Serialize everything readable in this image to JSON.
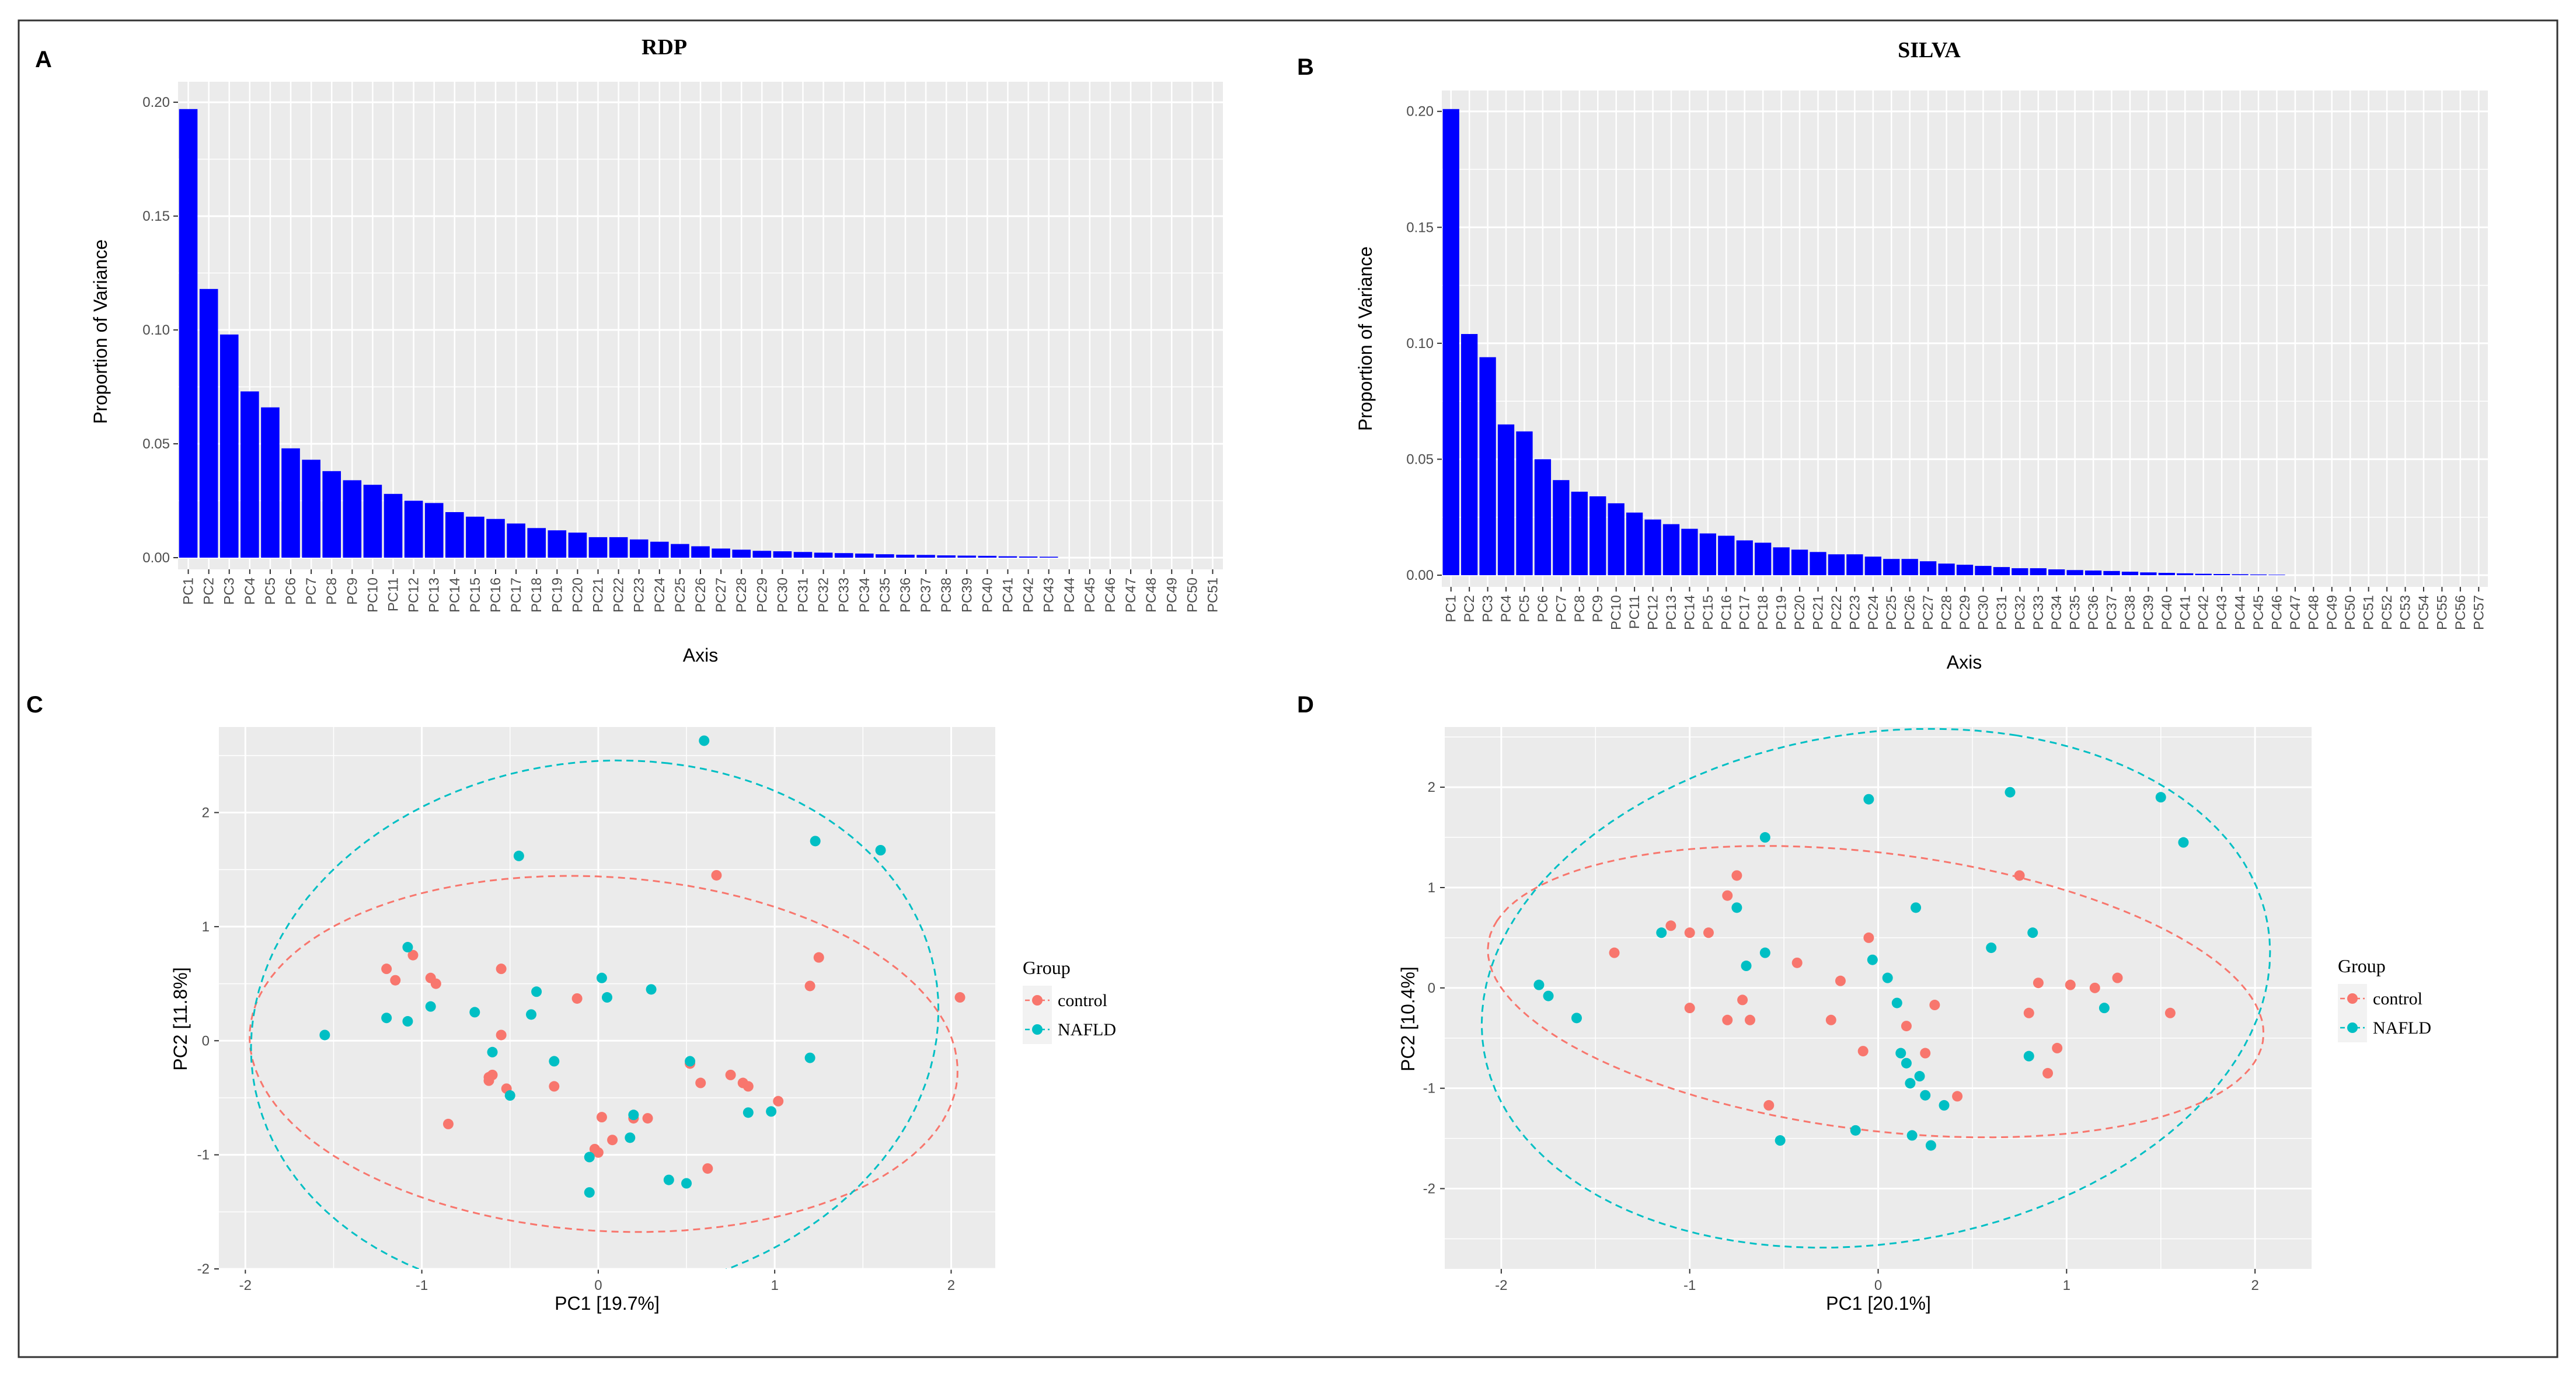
{
  "panels": {
    "A": {
      "letter": "A",
      "title": "RDP"
    },
    "B": {
      "letter": "B",
      "title": "SILVA"
    },
    "C": {
      "letter": "C"
    },
    "D": {
      "letter": "D"
    }
  },
  "colors": {
    "bar": "#0000ff",
    "panel_bg": "#ebebeb",
    "grid": "#ffffff",
    "control": "#f8766d",
    "nafld": "#00bfc4",
    "frame": "#333333"
  },
  "chart_data": [
    {
      "id": "A",
      "type": "bar",
      "title": "RDP",
      "xlabel": "Axis",
      "ylabel": "Proportion of Variance",
      "ylim": [
        0,
        0.2
      ],
      "yticks": [
        0.0,
        0.05,
        0.1,
        0.15,
        0.2
      ],
      "ytick_labels": [
        "0.00",
        "0.05",
        "0.10",
        "0.15",
        "0.20"
      ],
      "grid": true,
      "categories": [
        "PC1",
        "PC2",
        "PC3",
        "PC4",
        "PC5",
        "PC6",
        "PC7",
        "PC8",
        "PC9",
        "PC10",
        "PC11",
        "PC12",
        "PC13",
        "PC14",
        "PC15",
        "PC16",
        "PC17",
        "PC18",
        "PC19",
        "PC20",
        "PC21",
        "PC22",
        "PC23",
        "PC24",
        "PC25",
        "PC26",
        "PC27",
        "PC28",
        "PC29",
        "PC30",
        "PC31",
        "PC32",
        "PC33",
        "PC34",
        "PC35",
        "PC36",
        "PC37",
        "PC38",
        "PC39",
        "PC40",
        "PC41",
        "PC42",
        "PC43",
        "PC44",
        "PC45",
        "PC46",
        "PC47",
        "PC48",
        "PC49",
        "PC50",
        "PC51"
      ],
      "values": [
        0.197,
        0.118,
        0.098,
        0.073,
        0.066,
        0.048,
        0.043,
        0.038,
        0.034,
        0.032,
        0.028,
        0.025,
        0.024,
        0.02,
        0.018,
        0.017,
        0.015,
        0.013,
        0.012,
        0.011,
        0.009,
        0.009,
        0.008,
        0.007,
        0.006,
        0.005,
        0.004,
        0.0035,
        0.003,
        0.0028,
        0.0025,
        0.0022,
        0.002,
        0.0018,
        0.0015,
        0.0013,
        0.0012,
        0.001,
        0.0009,
        0.0008,
        0.0006,
        0.0005,
        0.0004,
        0,
        0,
        0,
        0,
        0,
        0,
        0,
        0
      ]
    },
    {
      "id": "B",
      "type": "bar",
      "title": "SILVA",
      "xlabel": "Axis",
      "ylabel": "Proportion of Variance",
      "ylim": [
        0,
        0.2
      ],
      "yticks": [
        0.0,
        0.05,
        0.1,
        0.15,
        0.2
      ],
      "ytick_labels": [
        "0.00",
        "0.05",
        "0.10",
        "0.15",
        "0.20"
      ],
      "grid": true,
      "categories": [
        "PC1",
        "PC2",
        "PC3",
        "PC4",
        "PC5",
        "PC6",
        "PC7",
        "PC8",
        "PC9",
        "PC10",
        "PC11",
        "PC12",
        "PC13",
        "PC14",
        "PC15",
        "PC16",
        "PC17",
        "PC18",
        "PC19",
        "PC20",
        "PC21",
        "PC22",
        "PC23",
        "PC24",
        "PC25",
        "PC26",
        "PC27",
        "PC28",
        "PC29",
        "PC30",
        "PC31",
        "PC32",
        "PC33",
        "PC34",
        "PC35",
        "PC36",
        "PC37",
        "PC38",
        "PC39",
        "PC40",
        "PC41",
        "PC42",
        "PC43",
        "PC44",
        "PC45",
        "PC46",
        "PC47",
        "PC48",
        "PC49",
        "PC50",
        "PC51",
        "PC52",
        "PC53",
        "PC54",
        "PC55",
        "PC56",
        "PC57"
      ],
      "values": [
        0.201,
        0.104,
        0.094,
        0.065,
        0.062,
        0.05,
        0.041,
        0.036,
        0.034,
        0.031,
        0.027,
        0.024,
        0.022,
        0.02,
        0.018,
        0.017,
        0.015,
        0.014,
        0.012,
        0.011,
        0.01,
        0.009,
        0.009,
        0.008,
        0.007,
        0.007,
        0.006,
        0.005,
        0.0045,
        0.004,
        0.0035,
        0.003,
        0.003,
        0.0025,
        0.0022,
        0.002,
        0.0018,
        0.0015,
        0.0012,
        0.001,
        0.0008,
        0.0006,
        0.0005,
        0.0004,
        0.0003,
        0.0002,
        0,
        0,
        0,
        0,
        0,
        0,
        0,
        0,
        0,
        0,
        0
      ]
    },
    {
      "id": "C",
      "type": "scatter",
      "xlabel": "PC1   [19.7%]",
      "ylabel": "PC2   [11.8%]",
      "xlim": [
        -2.15,
        2.25
      ],
      "ylim": [
        -2.0,
        2.75
      ],
      "xticks": [
        -2,
        -1,
        0,
        1,
        2
      ],
      "yticks": [
        -2,
        -1,
        0,
        1,
        2
      ],
      "grid": true,
      "legend": {
        "title": "Group",
        "position": "right",
        "items": [
          "control",
          "NAFLD"
        ]
      },
      "series": [
        {
          "name": "control",
          "color": "#f8766d",
          "points": [
            [
              -1.2,
              0.63
            ],
            [
              -1.15,
              0.53
            ],
            [
              -1.05,
              0.75
            ],
            [
              -0.95,
              0.55
            ],
            [
              -0.92,
              0.5
            ],
            [
              -0.55,
              0.63
            ],
            [
              -0.85,
              -0.73
            ],
            [
              -0.62,
              -0.35
            ],
            [
              -0.6,
              -0.3
            ],
            [
              -0.62,
              -0.32
            ],
            [
              -0.52,
              -0.42
            ],
            [
              -0.55,
              0.05
            ],
            [
              -0.25,
              -0.4
            ],
            [
              -0.12,
              0.37
            ],
            [
              -0.02,
              -0.95
            ],
            [
              0.0,
              -0.98
            ],
            [
              0.02,
              -0.67
            ],
            [
              0.08,
              -0.87
            ],
            [
              0.2,
              -0.68
            ],
            [
              0.28,
              -0.68
            ],
            [
              0.52,
              -0.2
            ],
            [
              0.58,
              -0.37
            ],
            [
              0.62,
              -1.12
            ],
            [
              0.67,
              1.45
            ],
            [
              0.75,
              -0.3
            ],
            [
              0.82,
              -0.37
            ],
            [
              0.85,
              -0.4
            ],
            [
              1.02,
              -0.53
            ],
            [
              1.2,
              0.48
            ],
            [
              1.25,
              0.73
            ],
            [
              2.05,
              0.38
            ]
          ]
        },
        {
          "name": "NAFLD",
          "color": "#00bfc4",
          "points": [
            [
              -1.55,
              0.05
            ],
            [
              -1.2,
              0.2
            ],
            [
              -1.08,
              0.82
            ],
            [
              -1.08,
              0.17
            ],
            [
              -0.95,
              0.3
            ],
            [
              -0.7,
              0.25
            ],
            [
              -0.6,
              -0.1
            ],
            [
              -0.5,
              -0.48
            ],
            [
              -0.45,
              1.62
            ],
            [
              -0.38,
              0.23
            ],
            [
              -0.35,
              0.43
            ],
            [
              -0.25,
              -0.18
            ],
            [
              -0.05,
              -1.02
            ],
            [
              -0.05,
              -1.33
            ],
            [
              0.02,
              0.55
            ],
            [
              0.05,
              0.38
            ],
            [
              0.18,
              -0.85
            ],
            [
              0.2,
              -0.65
            ],
            [
              0.3,
              0.45
            ],
            [
              0.4,
              -1.22
            ],
            [
              0.5,
              -1.25
            ],
            [
              0.52,
              -0.18
            ],
            [
              0.6,
              2.63
            ],
            [
              0.85,
              -0.63
            ],
            [
              0.98,
              -0.62
            ],
            [
              1.2,
              -0.15
            ],
            [
              1.23,
              1.75
            ],
            [
              1.6,
              1.67
            ]
          ]
        }
      ]
    },
    {
      "id": "D",
      "type": "scatter",
      "xlabel": "PC1   [20.1%]",
      "ylabel": "PC2   [10.4%]",
      "xlim": [
        -2.3,
        2.3
      ],
      "ylim": [
        -2.8,
        2.6
      ],
      "xticks": [
        -2,
        -1,
        0,
        1,
        2
      ],
      "yticks": [
        -2,
        -1,
        0,
        1,
        2
      ],
      "grid": true,
      "legend": {
        "title": "Group",
        "position": "right",
        "items": [
          "control",
          "NAFLD"
        ]
      },
      "series": [
        {
          "name": "control",
          "color": "#f8766d",
          "points": [
            [
              -1.4,
              0.35
            ],
            [
              -1.1,
              0.62
            ],
            [
              -1.0,
              0.55
            ],
            [
              -0.9,
              0.55
            ],
            [
              -1.0,
              -0.2
            ],
            [
              -0.8,
              0.92
            ],
            [
              -0.8,
              -0.32
            ],
            [
              -0.75,
              1.12
            ],
            [
              -0.72,
              -0.12
            ],
            [
              -0.68,
              -0.32
            ],
            [
              -0.58,
              -1.17
            ],
            [
              -0.43,
              0.25
            ],
            [
              -0.25,
              -0.32
            ],
            [
              -0.2,
              0.07
            ],
            [
              -0.08,
              -0.63
            ],
            [
              -0.05,
              0.5
            ],
            [
              0.15,
              -0.38
            ],
            [
              0.25,
              -0.65
            ],
            [
              0.3,
              -0.17
            ],
            [
              0.42,
              -1.08
            ],
            [
              0.75,
              1.12
            ],
            [
              0.8,
              -0.25
            ],
            [
              0.85,
              0.05
            ],
            [
              0.9,
              -0.85
            ],
            [
              0.95,
              -0.6
            ],
            [
              1.02,
              0.03
            ],
            [
              1.15,
              0.0
            ],
            [
              1.27,
              0.1
            ],
            [
              1.55,
              -0.25
            ]
          ]
        },
        {
          "name": "NAFLD",
          "color": "#00bfc4",
          "points": [
            [
              -1.8,
              0.03
            ],
            [
              -1.75,
              -0.08
            ],
            [
              -1.6,
              -0.3
            ],
            [
              -1.15,
              0.55
            ],
            [
              -0.75,
              0.8
            ],
            [
              -0.7,
              0.22
            ],
            [
              -0.6,
              0.35
            ],
            [
              -0.6,
              1.5
            ],
            [
              -0.52,
              -1.52
            ],
            [
              -0.12,
              -1.42
            ],
            [
              -0.05,
              1.88
            ],
            [
              -0.03,
              0.28
            ],
            [
              0.05,
              0.1
            ],
            [
              0.1,
              -0.15
            ],
            [
              0.12,
              -0.65
            ],
            [
              0.15,
              -0.75
            ],
            [
              0.17,
              -0.95
            ],
            [
              0.18,
              -1.47
            ],
            [
              0.2,
              0.8
            ],
            [
              0.22,
              -0.88
            ],
            [
              0.25,
              -1.07
            ],
            [
              0.28,
              -1.57
            ],
            [
              0.35,
              -1.17
            ],
            [
              0.6,
              0.4
            ],
            [
              0.7,
              1.95
            ],
            [
              0.8,
              -0.68
            ],
            [
              0.82,
              0.55
            ],
            [
              1.2,
              -0.2
            ],
            [
              1.5,
              1.9
            ],
            [
              1.62,
              1.45
            ]
          ]
        }
      ]
    }
  ]
}
